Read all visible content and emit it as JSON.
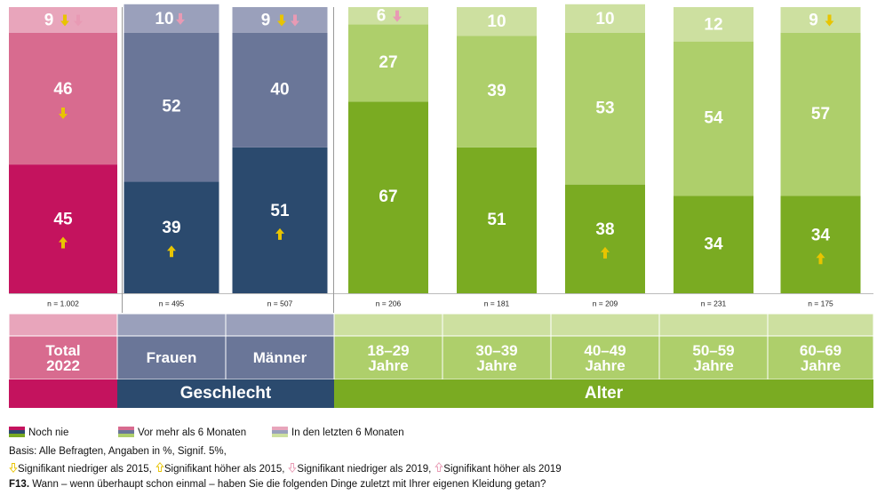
{
  "chart_data": {
    "type": "bar",
    "stacked": true,
    "categories": [
      "Total\n2022",
      "Frauen",
      "Männer",
      "18–29\nJahre",
      "30–39\nJahre",
      "40–49\nJahre",
      "50–59\nJahre",
      "60–69\nJahre"
    ],
    "groups": [
      "Geschlecht",
      "Alter"
    ],
    "n_labels": [
      "n = 1.002",
      "n = 495",
      "n = 507",
      "n = 206",
      "n = 181",
      "n = 209",
      "n = 231",
      "n = 175"
    ],
    "ylim": [
      0,
      100
    ],
    "series": [
      {
        "name": "Noch nie",
        "values": [
          45,
          39,
          51,
          67,
          51,
          38,
          34,
          34
        ],
        "colors": [
          "#c4135e",
          "#2b4a6e",
          "#2b4a6e",
          "#7aab22",
          "#7aab22",
          "#7aab22",
          "#7aab22",
          "#7aab22"
        ],
        "significance": [
          [
            1
          ],
          [
            1
          ],
          [
            1
          ],
          [],
          [],
          [
            1
          ],
          [],
          [
            1
          ]
        ]
      },
      {
        "name": "Vor mehr als 6 Monaten",
        "values": [
          46,
          52,
          40,
          27,
          39,
          53,
          54,
          57
        ],
        "colors": [
          "#d86b8f",
          "#6a7698",
          "#6a7698",
          "#aecf6b",
          "#aecf6b",
          "#aecf6b",
          "#aecf6b",
          "#aecf6b"
        ],
        "significance": [
          [
            0
          ],
          [],
          [],
          [],
          [],
          [],
          [],
          []
        ]
      },
      {
        "name": "In den letzten 6 Monaten",
        "values": [
          9,
          10,
          9,
          6,
          10,
          10,
          12,
          9
        ],
        "colors": [
          "#e8a5bb",
          "#9aa0bb",
          "#9aa0bb",
          "#cde0a0",
          "#cde0a0",
          "#cde0a0",
          "#cde0a0",
          "#cde0a0"
        ],
        "significance": [
          [
            0,
            2
          ],
          [
            2
          ],
          [
            0,
            2
          ],
          [
            2
          ],
          [],
          [],
          [],
          [
            0
          ]
        ]
      }
    ],
    "significance_legend": [
      "Signifikant niedriger als 2015,",
      "Signifikant höher als 2015,",
      "Signifikant niedriger als 2019,",
      "Signifikant höher als 2019"
    ],
    "significance_colors": [
      "#e8c400",
      "#e8c400",
      "#e89ab4",
      "#e89ab4"
    ],
    "basis": "Basis: Alle Befragten, Angaben in %, Signif. 5%,",
    "question_id": "F13.",
    "question": "Wann – wenn überhaupt schon einmal – haben Sie die folgenden Dinge zuletzt mit Ihrer eigenen Kleidung getan?"
  }
}
